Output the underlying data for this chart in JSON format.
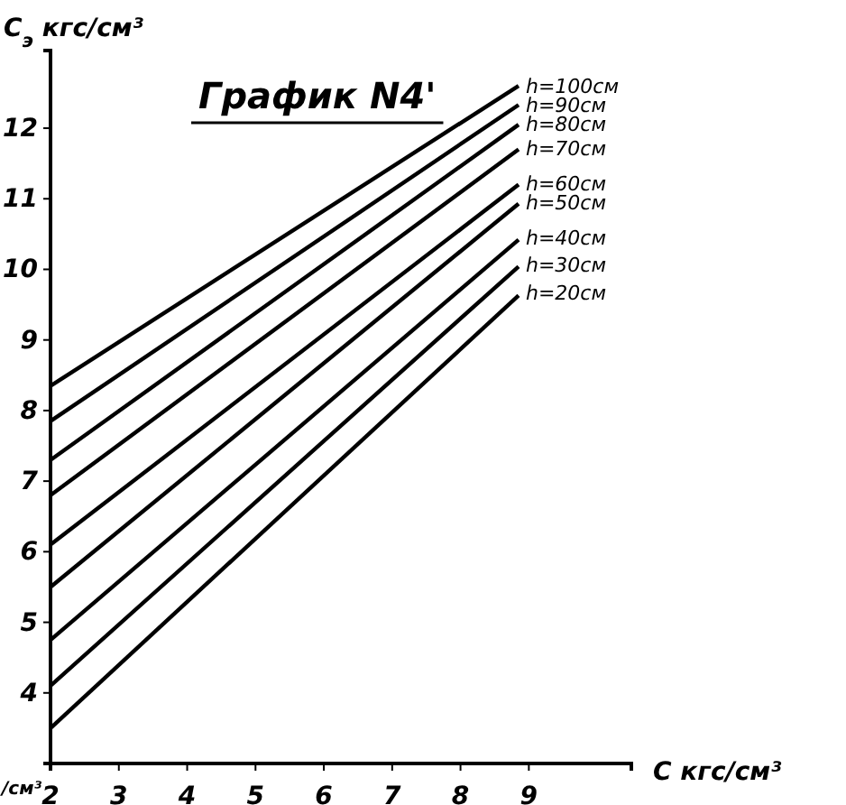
{
  "chart_data": {
    "type": "line",
    "title": "График N4'",
    "xlabel": "С кгс/см³",
    "ylabel": "С$_{э}$ кгс/см³",
    "annotations": [
      "/см³"
    ],
    "x": [
      2,
      8.85
    ],
    "xlim": [
      2,
      10.5
    ],
    "ylim": [
      3,
      13.1
    ],
    "xticks": [
      2,
      3,
      4,
      5,
      6,
      7,
      8,
      9
    ],
    "yticks": [
      4,
      5,
      6,
      7,
      8,
      9,
      10,
      11,
      12
    ],
    "grid": false,
    "legend": false,
    "marker": "none",
    "line_style": "solid",
    "series": [
      {
        "name": "h=100см",
        "color": "#000000",
        "values": [
          8.35,
          12.6
        ]
      },
      {
        "name": "h=90см",
        "color": "#000000",
        "values": [
          7.85,
          12.33
        ]
      },
      {
        "name": "h=80см",
        "color": "#000000",
        "values": [
          7.3,
          12.05
        ]
      },
      {
        "name": "h=70см",
        "color": "#000000",
        "values": [
          6.8,
          11.7
        ]
      },
      {
        "name": "h=60см",
        "color": "#000000",
        "values": [
          6.1,
          11.2
        ]
      },
      {
        "name": "h=50см",
        "color": "#000000",
        "values": [
          5.5,
          10.93
        ]
      },
      {
        "name": "h=40см",
        "color": "#000000",
        "values": [
          4.75,
          10.42
        ]
      },
      {
        "name": "h=30см",
        "color": "#000000",
        "values": [
          4.1,
          10.04
        ]
      },
      {
        "name": "h=20см",
        "color": "#000000",
        "values": [
          3.5,
          9.63
        ]
      }
    ]
  }
}
